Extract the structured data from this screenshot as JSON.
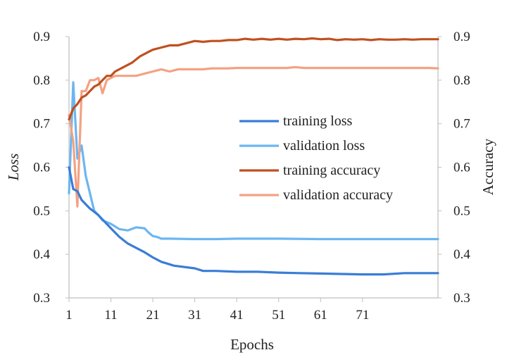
{
  "chart_data": {
    "type": "line",
    "xlabel": "Epochs",
    "ylabel_left": "Loss",
    "ylabel_right": "Accuracy",
    "x_ticks": [
      1,
      11,
      21,
      31,
      41,
      51,
      61,
      71
    ],
    "xlim": [
      1,
      89
    ],
    "ylim_left": [
      0.3,
      0.9
    ],
    "ylim_right": [
      0.3,
      0.9
    ],
    "y_ticks_left": [
      "0.3",
      "0.4",
      "0.5",
      "0.6",
      "0.7",
      "0.8",
      "0.9"
    ],
    "y_ticks_right": [
      "0.3",
      "0.4",
      "0.5",
      "0.6",
      "0.7",
      "0.8",
      "0.9"
    ],
    "grid": false,
    "legend_position": "center-right",
    "series": [
      {
        "name": "training loss",
        "axis": "left",
        "color": "#3a7dd6",
        "x": [
          1,
          2,
          3,
          4,
          5,
          6,
          7,
          8,
          9,
          11,
          13,
          15,
          17,
          19,
          21,
          23,
          26,
          31,
          33,
          36,
          41,
          46,
          51,
          56,
          61,
          66,
          71,
          76,
          81,
          89
        ],
        "y": [
          0.6,
          0.55,
          0.545,
          0.525,
          0.515,
          0.505,
          0.498,
          0.49,
          0.48,
          0.46,
          0.44,
          0.425,
          0.415,
          0.405,
          0.393,
          0.383,
          0.374,
          0.368,
          0.362,
          0.362,
          0.36,
          0.36,
          0.358,
          0.357,
          0.356,
          0.355,
          0.354,
          0.354,
          0.357,
          0.357
        ]
      },
      {
        "name": "validation loss",
        "axis": "left",
        "color": "#6cb6f0",
        "x": [
          1,
          2,
          3,
          4,
          5,
          6,
          7,
          8,
          9,
          11,
          13,
          15,
          17,
          19,
          20,
          21,
          22,
          23,
          25,
          31,
          36,
          41,
          51,
          61,
          71,
          81,
          89
        ],
        "y": [
          0.54,
          0.795,
          0.62,
          0.65,
          0.58,
          0.54,
          0.5,
          0.49,
          0.478,
          0.47,
          0.458,
          0.455,
          0.462,
          0.46,
          0.45,
          0.442,
          0.44,
          0.436,
          0.436,
          0.435,
          0.435,
          0.436,
          0.436,
          0.435,
          0.435,
          0.435,
          0.435
        ]
      },
      {
        "name": "training accuracy",
        "axis": "right",
        "color": "#c0501f",
        "x": [
          1,
          2,
          3,
          4,
          5,
          6,
          7,
          8,
          9,
          10,
          11,
          12,
          14,
          16,
          18,
          20,
          21,
          23,
          25,
          27,
          29,
          31,
          33,
          35,
          37,
          39,
          41,
          43,
          45,
          47,
          49,
          51,
          53,
          55,
          57,
          59,
          61,
          63,
          65,
          67,
          69,
          71,
          73,
          75,
          77,
          79,
          81,
          83,
          85,
          87,
          89
        ],
        "y": [
          0.71,
          0.735,
          0.745,
          0.76,
          0.765,
          0.775,
          0.785,
          0.79,
          0.8,
          0.81,
          0.81,
          0.82,
          0.83,
          0.84,
          0.855,
          0.865,
          0.87,
          0.875,
          0.88,
          0.88,
          0.885,
          0.89,
          0.888,
          0.89,
          0.89,
          0.892,
          0.892,
          0.895,
          0.893,
          0.895,
          0.893,
          0.895,
          0.893,
          0.895,
          0.894,
          0.896,
          0.894,
          0.895,
          0.892,
          0.894,
          0.893,
          0.894,
          0.892,
          0.894,
          0.893,
          0.893,
          0.894,
          0.893,
          0.894,
          0.894,
          0.894
        ]
      },
      {
        "name": "validation accuracy",
        "axis": "right",
        "color": "#f3a283",
        "x": [
          1,
          2,
          3,
          4,
          5,
          6,
          7,
          8,
          9,
          10,
          11,
          12,
          13,
          15,
          17,
          19,
          21,
          23,
          25,
          27,
          29,
          31,
          33,
          35,
          37,
          39,
          41,
          43,
          45,
          47,
          49,
          51,
          53,
          55,
          57,
          59,
          61,
          63,
          65,
          67,
          69,
          71,
          73,
          75,
          77,
          79,
          81,
          83,
          85,
          87,
          89
        ],
        "y": [
          0.72,
          0.66,
          0.51,
          0.775,
          0.775,
          0.8,
          0.8,
          0.805,
          0.77,
          0.8,
          0.805,
          0.81,
          0.81,
          0.81,
          0.81,
          0.815,
          0.82,
          0.825,
          0.82,
          0.825,
          0.825,
          0.825,
          0.825,
          0.827,
          0.827,
          0.827,
          0.828,
          0.828,
          0.828,
          0.828,
          0.828,
          0.828,
          0.828,
          0.83,
          0.828,
          0.828,
          0.828,
          0.828,
          0.828,
          0.828,
          0.828,
          0.828,
          0.828,
          0.828,
          0.828,
          0.828,
          0.828,
          0.828,
          0.828,
          0.828,
          0.827
        ]
      }
    ]
  }
}
